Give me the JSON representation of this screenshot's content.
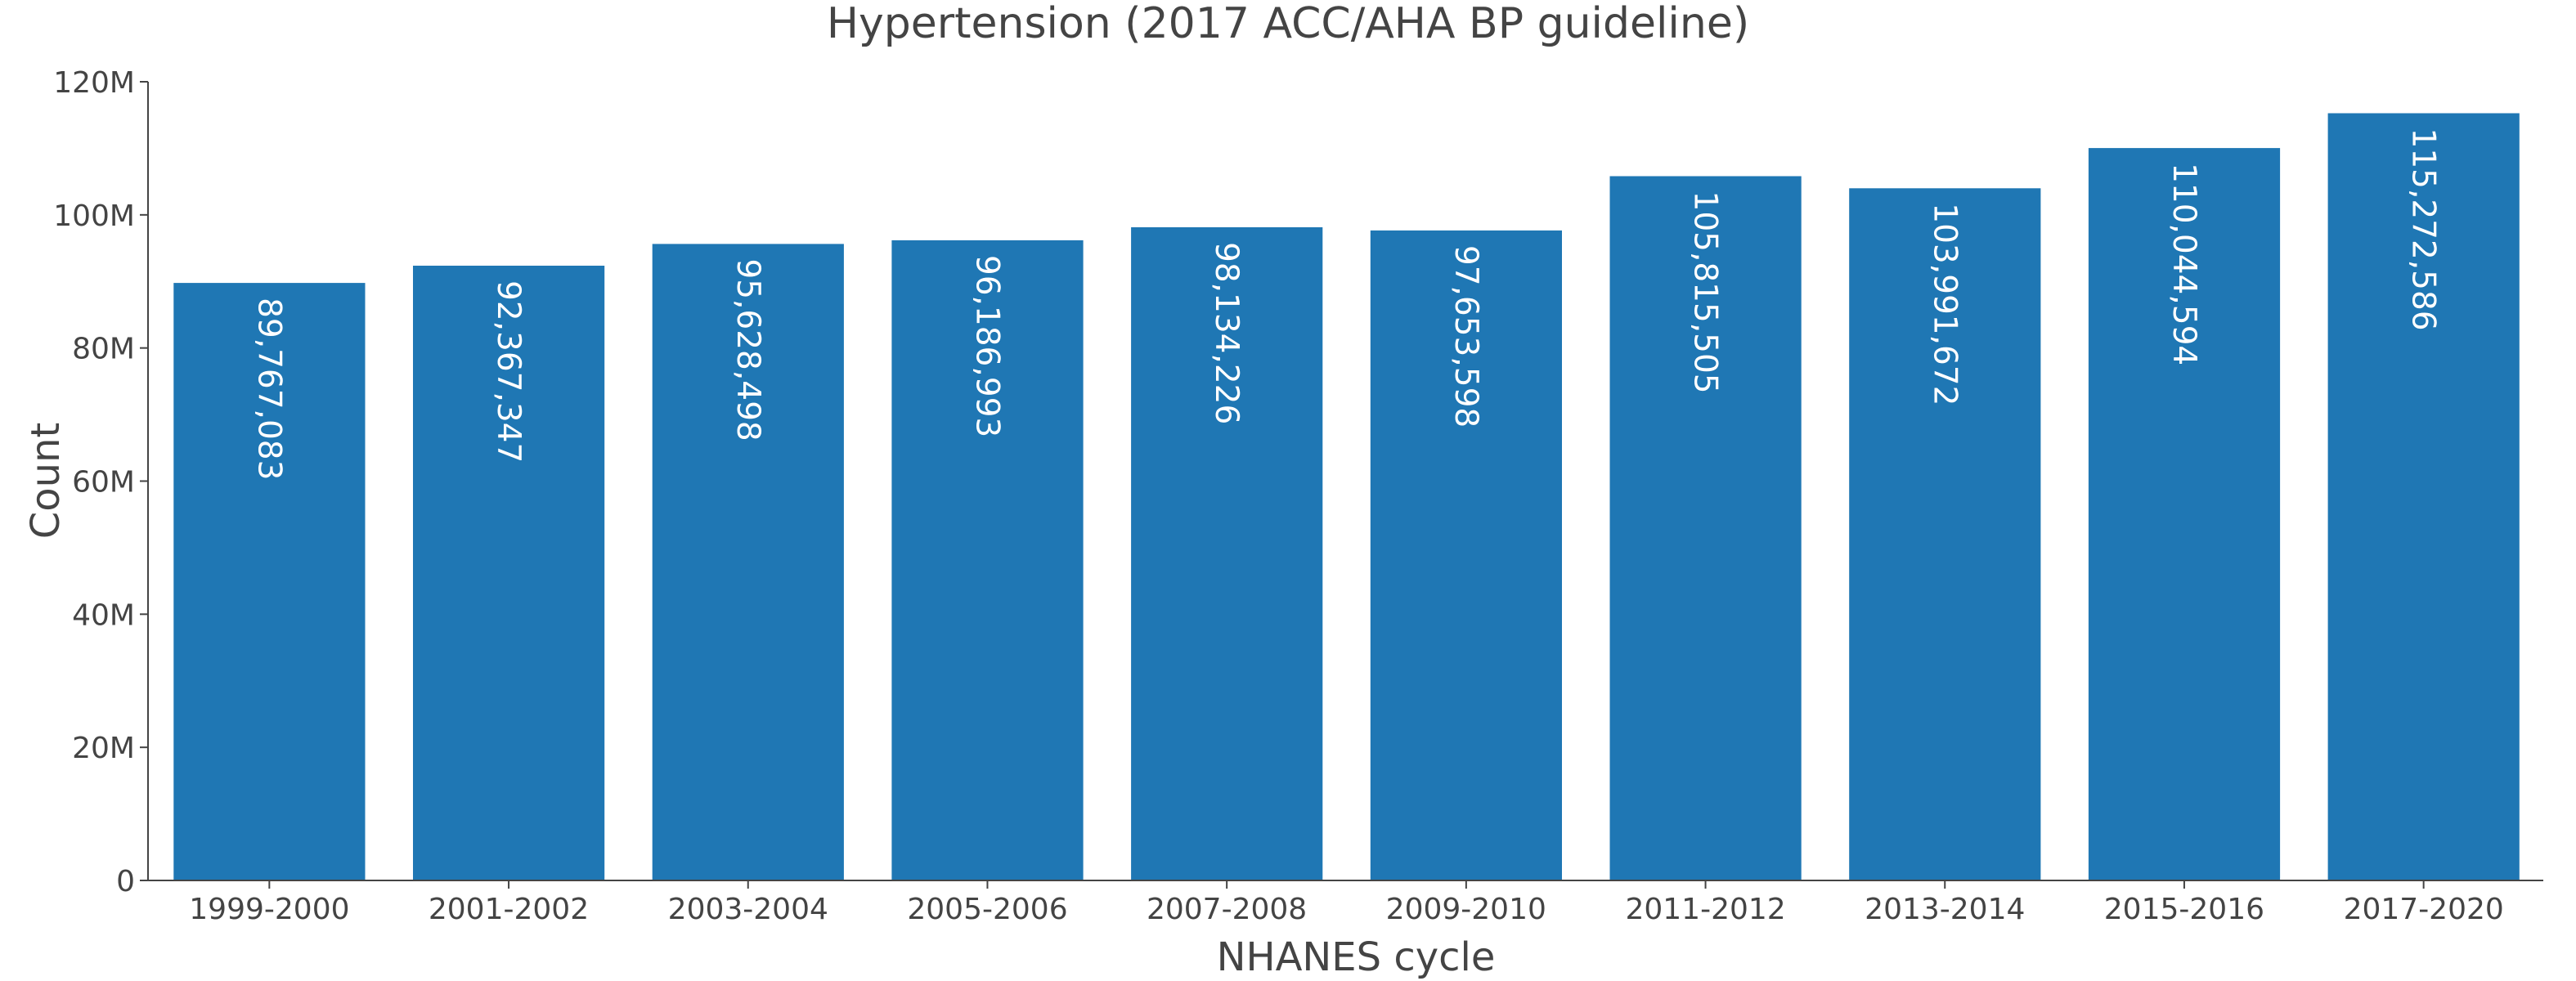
{
  "chart_data": {
    "type": "bar",
    "title": "Hypertension (2017 ACC/AHA BP guideline)",
    "xlabel": "NHANES cycle",
    "ylabel": "Count",
    "categories": [
      "1999-2000",
      "2001-2002",
      "2003-2004",
      "2005-2006",
      "2007-2008",
      "2009-2010",
      "2011-2012",
      "2013-2014",
      "2015-2016",
      "2017-2020"
    ],
    "values": [
      89767083,
      92367347,
      95628498,
      96186993,
      98134226,
      97653598,
      105815505,
      103991672,
      110044594,
      115272586
    ],
    "data_labels": [
      "89,767,083",
      "92,367,347",
      "95,628,498",
      "96,186,993",
      "98,134,226",
      "97,653,598",
      "105,815,505",
      "103,991,672",
      "110,044,594",
      "115,272,586"
    ],
    "ylim": [
      0,
      120000000
    ],
    "yticks": [
      0,
      20000000,
      40000000,
      60000000,
      80000000,
      100000000,
      120000000
    ],
    "ytick_labels": [
      "0",
      "20M",
      "40M",
      "60M",
      "80M",
      "100M",
      "120M"
    ],
    "bar_color": "#1f77b4",
    "grid": false,
    "legend": "none"
  }
}
